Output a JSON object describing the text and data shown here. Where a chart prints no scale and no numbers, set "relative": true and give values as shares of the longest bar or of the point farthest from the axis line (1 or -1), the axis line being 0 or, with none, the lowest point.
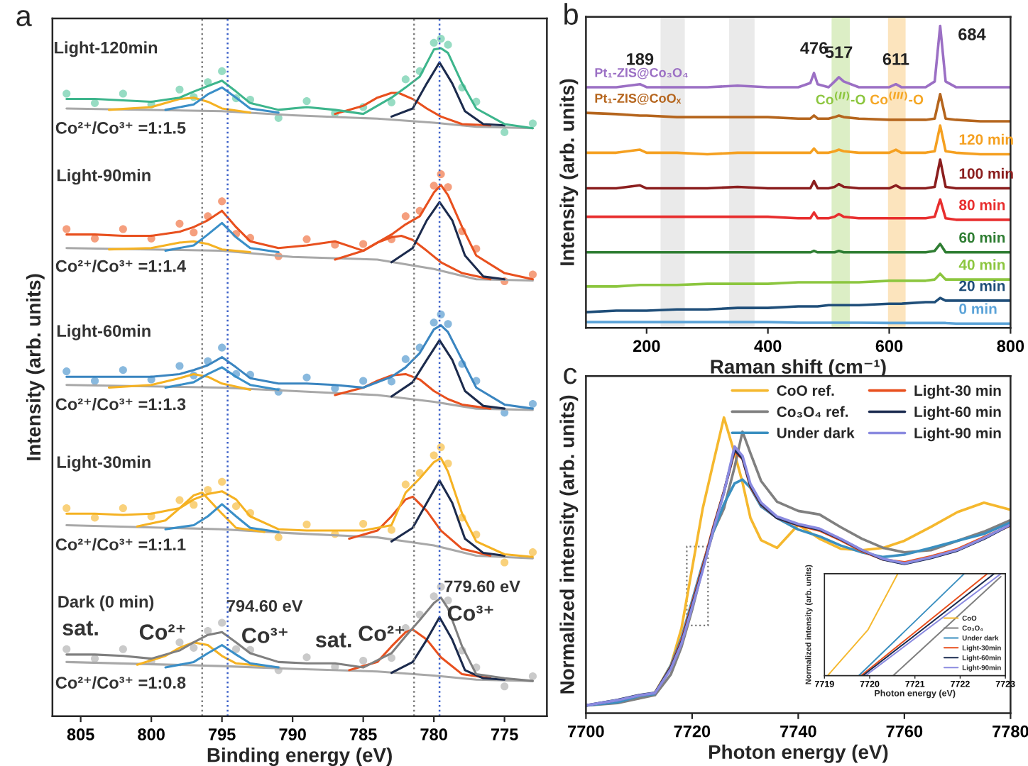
{
  "chart_data": [
    {
      "type": "line",
      "annotations": [
        "a",
        "Light-120min",
        "Co²⁺/Co³⁺ =1:1.5",
        "Light-90min",
        "Co²⁺/Co³⁺ =1:1.4",
        "Light-60min",
        "Co²⁺/Co³⁺ =1:1.3",
        "Light-30min",
        "Co²⁺/Co³⁺ =1:1.1",
        "Dark (0 min)",
        "Co²⁺/Co³⁺ =1:0.8",
        "sat.",
        "Co²⁺",
        "794.60 eV",
        "Co³⁺",
        "sat.",
        "Co²⁺",
        "779.60 eV",
        "Co³⁺"
      ],
      "xlabel": "Binding energy (eV)",
      "ylabel": "Intensity (arb. units)",
      "xlim": [
        807,
        772
      ],
      "xticks": [
        805,
        800,
        795,
        790,
        785,
        780,
        775
      ],
      "relative": true,
      "x": [
        806,
        804,
        802,
        800,
        798,
        797,
        796,
        795,
        794,
        793,
        791,
        789,
        787,
        785,
        783,
        782,
        781,
        780,
        779.5,
        779,
        778,
        777,
        775,
        773
      ],
      "ref_lines": [
        {
          "axis": "x",
          "value": 779.6,
          "color": "#3a5fc8",
          "line_style": "dotted"
        },
        {
          "axis": "x",
          "value": 781.4,
          "color": "#808080",
          "line_style": "dotted"
        },
        {
          "axis": "x",
          "value": 794.6,
          "color": "#3a5fc8",
          "line_style": "dotted"
        },
        {
          "axis": "x",
          "value": 796.4,
          "color": "#808080",
          "line_style": "dotted"
        }
      ],
      "series": [
        {
          "type": "scatter",
          "marker": "circle",
          "color": "#7dd3b4",
          "values": [
            0.919,
            0.905,
            0.919,
            0.903,
            0.925,
            0.914,
            0.936,
            0.952,
            0.912,
            0.91,
            0.883,
            0.908,
            0.89,
            0.899,
            0.906,
            0.94,
            0.952,
            0.994,
            1.0,
            0.991,
            0.928,
            0.907,
            0.862,
            0.875
          ]
        },
        {
          "type": "line",
          "color": "#a8a8a8",
          "x": [
            806,
            795,
            790,
            784,
            780,
            777,
            773
          ],
          "values": [
            0.897,
            0.893,
            0.887,
            0.882,
            0.876,
            0.87,
            0.868
          ]
        },
        {
          "type": "line",
          "color": "#f5b223",
          "x": [
            803,
            800,
            798,
            797,
            796,
            795,
            793
          ],
          "values": [
            0.895,
            0.899,
            0.911,
            0.913,
            0.907,
            0.897,
            0.891
          ]
        },
        {
          "type": "line",
          "color": "#3a8fc8",
          "x": [
            799,
            797,
            796,
            795,
            794,
            793,
            791
          ],
          "values": [
            0.895,
            0.903,
            0.918,
            0.928,
            0.913,
            0.897,
            0.891
          ]
        },
        {
          "type": "line",
          "color": "#e8501e",
          "x": [
            787,
            785,
            784,
            783,
            782.5,
            781.5,
            780.5,
            779.5,
            778,
            776
          ],
          "values": [
            0.889,
            0.901,
            0.913,
            0.92,
            0.92,
            0.911,
            0.897,
            0.885,
            0.874,
            0.872
          ]
        },
        {
          "type": "line",
          "color": "#1c2b4d",
          "x": [
            783,
            781.5,
            780.5,
            779.6,
            778.7,
            777.8,
            776.5,
            775
          ],
          "values": [
            0.885,
            0.897,
            0.934,
            0.965,
            0.934,
            0.893,
            0.874,
            0.872
          ]
        },
        {
          "type": "line",
          "color": "#3db58c",
          "values": [
            0.911,
            0.911,
            0.909,
            0.907,
            0.913,
            0.922,
            0.93,
            0.938,
            0.922,
            0.905,
            0.895,
            0.899,
            0.895,
            0.889,
            0.913,
            0.928,
            0.944,
            0.984,
            0.986,
            0.979,
            0.934,
            0.897,
            0.874,
            0.868
          ]
        },
        {
          "type": "scatter",
          "marker": "circle",
          "color": "#f2875e",
          "values": [
            0.719,
            0.705,
            0.719,
            0.705,
            0.727,
            0.714,
            0.738,
            0.76,
            0.712,
            0.706,
            0.679,
            0.704,
            0.696,
            0.697,
            0.704,
            0.738,
            0.746,
            0.783,
            0.8,
            0.781,
            0.716,
            0.69,
            0.642,
            0.652
          ]
        },
        {
          "type": "line",
          "color": "#a8a8a8",
          "x": [
            806,
            795,
            790,
            784,
            780,
            777,
            773
          ],
          "values": [
            0.691,
            0.687,
            0.678,
            0.674,
            0.66,
            0.645,
            0.643
          ]
        },
        {
          "type": "line",
          "color": "#f5b223",
          "x": [
            803,
            800,
            798,
            797,
            796,
            795,
            793
          ],
          "values": [
            0.689,
            0.691,
            0.699,
            0.701,
            0.697,
            0.689,
            0.685
          ]
        },
        {
          "type": "line",
          "color": "#3a8fc8",
          "x": [
            799,
            797,
            796,
            795,
            794,
            793,
            791
          ],
          "values": [
            0.687,
            0.695,
            0.711,
            0.728,
            0.707,
            0.691,
            0.685
          ]
        },
        {
          "type": "line",
          "color": "#e8501e",
          "x": [
            787,
            785,
            784,
            783,
            782.3,
            781.5,
            780.5,
            779.5,
            778,
            776
          ],
          "values": [
            0.674,
            0.687,
            0.699,
            0.707,
            0.709,
            0.703,
            0.687,
            0.67,
            0.654,
            0.645
          ]
        },
        {
          "type": "line",
          "color": "#1c2b4d",
          "x": [
            783,
            781.5,
            780.5,
            779.6,
            778.7,
            777.8,
            776.5,
            775
          ],
          "values": [
            0.67,
            0.691,
            0.732,
            0.759,
            0.732,
            0.68,
            0.649,
            0.645
          ]
        },
        {
          "type": "line",
          "color": "#e8501e",
          "values": [
            0.711,
            0.711,
            0.709,
            0.709,
            0.715,
            0.722,
            0.732,
            0.746,
            0.722,
            0.701,
            0.691,
            0.695,
            0.701,
            0.687,
            0.711,
            0.726,
            0.738,
            0.773,
            0.784,
            0.769,
            0.722,
            0.68,
            0.654,
            0.645
          ]
        },
        {
          "type": "scatter",
          "marker": "circle",
          "color": "#6ba7d6",
          "values": [
            0.509,
            0.495,
            0.511,
            0.497,
            0.517,
            0.503,
            0.524,
            0.544,
            0.505,
            0.504,
            0.479,
            0.5,
            0.484,
            0.495,
            0.494,
            0.527,
            0.544,
            0.581,
            0.593,
            0.579,
            0.52,
            0.495,
            0.448,
            0.461
          ]
        },
        {
          "type": "line",
          "color": "#a8a8a8",
          "x": [
            806,
            795,
            790,
            784,
            780,
            777,
            773
          ],
          "values": [
            0.489,
            0.485,
            0.48,
            0.474,
            0.464,
            0.454,
            0.452
          ]
        },
        {
          "type": "line",
          "color": "#f5b223",
          "x": [
            803,
            800,
            798,
            797,
            796,
            795,
            793
          ],
          "values": [
            0.485,
            0.489,
            0.499,
            0.505,
            0.501,
            0.491,
            0.482
          ]
        },
        {
          "type": "line",
          "color": "#3a8fc8",
          "x": [
            799,
            797,
            796,
            795,
            794,
            793,
            791
          ],
          "values": [
            0.485,
            0.493,
            0.505,
            0.515,
            0.501,
            0.489,
            0.482
          ]
        },
        {
          "type": "line",
          "color": "#e8501e",
          "x": [
            787,
            785,
            784,
            783,
            782,
            781,
            780,
            779,
            778,
            776
          ],
          "values": [
            0.474,
            0.485,
            0.495,
            0.503,
            0.505,
            0.497,
            0.48,
            0.468,
            0.46,
            0.454
          ]
        },
        {
          "type": "line",
          "color": "#1c2b4d",
          "x": [
            783,
            781.5,
            780.5,
            779.6,
            778.7,
            777.8,
            776.5,
            775
          ],
          "values": [
            0.472,
            0.493,
            0.526,
            0.555,
            0.526,
            0.48,
            0.458,
            0.454
          ]
        },
        {
          "type": "line",
          "color": "#3a85c0",
          "values": [
            0.501,
            0.501,
            0.501,
            0.501,
            0.505,
            0.511,
            0.518,
            0.53,
            0.515,
            0.499,
            0.491,
            0.491,
            0.489,
            0.485,
            0.501,
            0.515,
            0.536,
            0.571,
            0.577,
            0.567,
            0.526,
            0.485,
            0.46,
            0.454
          ]
        },
        {
          "type": "scatter",
          "marker": "circle",
          "color": "#f8c55a",
          "values": [
            0.307,
            0.293,
            0.307,
            0.295,
            0.319,
            0.312,
            0.334,
            0.346,
            0.31,
            0.3,
            0.264,
            0.283,
            0.269,
            0.284,
            0.275,
            0.342,
            0.359,
            0.385,
            0.397,
            0.373,
            0.293,
            0.268,
            0.227,
            0.242
          ]
        },
        {
          "type": "line",
          "color": "#a8a8a8",
          "x": [
            806,
            795,
            790,
            784,
            780,
            777,
            773
          ],
          "values": [
            0.282,
            0.276,
            0.27,
            0.264,
            0.252,
            0.237,
            0.233
          ]
        },
        {
          "type": "line",
          "color": "#f5b223",
          "x": [
            801,
            799,
            798,
            797,
            796.4,
            795,
            794,
            792
          ],
          "values": [
            0.28,
            0.289,
            0.307,
            0.326,
            0.33,
            0.299,
            0.278,
            0.272
          ]
        },
        {
          "type": "line",
          "color": "#3a8fc8",
          "x": [
            799,
            797,
            796,
            795,
            794,
            793,
            791
          ],
          "values": [
            0.276,
            0.282,
            0.295,
            0.313,
            0.295,
            0.278,
            0.272
          ]
        },
        {
          "type": "line",
          "color": "#e8501e",
          "x": [
            786,
            784,
            783,
            782,
            781.5,
            780.5,
            779.5,
            778,
            776
          ],
          "values": [
            0.262,
            0.274,
            0.295,
            0.32,
            0.324,
            0.303,
            0.274,
            0.247,
            0.237
          ]
        },
        {
          "type": "line",
          "color": "#1c2b4d",
          "x": [
            783,
            781.5,
            780.5,
            779.6,
            778.7,
            777.8,
            776.5,
            775
          ],
          "values": [
            0.258,
            0.278,
            0.315,
            0.348,
            0.315,
            0.262,
            0.241,
            0.237
          ]
        },
        {
          "type": "line",
          "color": "#f5b223",
          "values": [
            0.299,
            0.299,
            0.297,
            0.299,
            0.307,
            0.32,
            0.328,
            0.332,
            0.32,
            0.295,
            0.276,
            0.274,
            0.274,
            0.274,
            0.282,
            0.33,
            0.351,
            0.375,
            0.381,
            0.361,
            0.299,
            0.258,
            0.239,
            0.235
          ]
        },
        {
          "type": "scatter",
          "marker": "circle",
          "color": "#bdbdbd",
          "values": [
            0.099,
            0.085,
            0.099,
            0.081,
            0.109,
            0.101,
            0.126,
            0.138,
            0.099,
            0.098,
            0.068,
            0.087,
            0.073,
            0.082,
            0.086,
            0.13,
            0.15,
            0.177,
            0.191,
            0.171,
            0.097,
            0.072,
            0.044,
            0.059
          ]
        },
        {
          "type": "line",
          "color": "#a8a8a8",
          "x": [
            806,
            795,
            790,
            784,
            780,
            777,
            773
          ],
          "values": [
            0.08,
            0.074,
            0.07,
            0.066,
            0.06,
            0.054,
            0.052
          ]
        },
        {
          "type": "line",
          "color": "#f5b223",
          "x": [
            801,
            799,
            798,
            797,
            796,
            795,
            794,
            792
          ],
          "values": [
            0.076,
            0.089,
            0.101,
            0.109,
            0.105,
            0.089,
            0.078,
            0.074
          ]
        },
        {
          "type": "line",
          "color": "#3a8fc8",
          "x": [
            799,
            797,
            796,
            795,
            794,
            793,
            791
          ],
          "values": [
            0.072,
            0.08,
            0.093,
            0.105,
            0.091,
            0.078,
            0.072
          ]
        },
        {
          "type": "line",
          "color": "#e8501e",
          "x": [
            786,
            784,
            783,
            782,
            781.5,
            780.5,
            779.5,
            778,
            776
          ],
          "values": [
            0.068,
            0.08,
            0.103,
            0.124,
            0.128,
            0.113,
            0.087,
            0.062,
            0.056
          ]
        },
        {
          "type": "line",
          "color": "#1c2b4d",
          "x": [
            783,
            781.5,
            780.5,
            779.6,
            778.7,
            777.8,
            776.5,
            775
          ],
          "values": [
            0.064,
            0.08,
            0.113,
            0.146,
            0.113,
            0.068,
            0.056,
            0.054
          ]
        },
        {
          "type": "line",
          "color": "#7f7f7f",
          "values": [
            0.091,
            0.091,
            0.089,
            0.085,
            0.097,
            0.109,
            0.12,
            0.124,
            0.109,
            0.093,
            0.08,
            0.078,
            0.078,
            0.072,
            0.093,
            0.118,
            0.142,
            0.167,
            0.175,
            0.159,
            0.103,
            0.062,
            0.056,
            0.052
          ]
        }
      ]
    },
    {
      "type": "line",
      "annotations": [
        "b",
        {
          "text": "189",
          "x": 189,
          "y": 0.807
        },
        {
          "text": "476",
          "x": 476,
          "y": 0.844
        },
        {
          "text": "517",
          "x": 517,
          "y": 0.83
        },
        {
          "text": "611",
          "x": 611,
          "y": 0.807
        },
        {
          "text": "684",
          "x": 684,
          "y": 1.0
        }
      ],
      "xlabel": "Raman shift (cm⁻¹)",
      "ylabel": "Intensity (arb. units)",
      "xlim": [
        100,
        800
      ],
      "xticks": [
        200,
        400,
        600,
        800
      ],
      "relative": true,
      "bands": [
        {
          "axis": "x",
          "from": 223,
          "to": 263,
          "color": "#b8b8b8"
        },
        {
          "axis": "x",
          "from": 336,
          "to": 378,
          "color": "#b8b8b8"
        },
        {
          "axis": "x",
          "from": 505,
          "to": 535,
          "color": "#8cc63f",
          "label": "Co$^{(II)}$-O"
        },
        {
          "axis": "x",
          "from": 598,
          "to": 627,
          "color": "#f5a623",
          "label": "Co$^{(III)}$-O"
        }
      ],
      "x": [
        100,
        150,
        189,
        200,
        250,
        300,
        350,
        400,
        450,
        470,
        476,
        482,
        500,
        510,
        517,
        525,
        550,
        600,
        611,
        620,
        660,
        675,
        684,
        693,
        710,
        750,
        800
      ],
      "series": [
        {
          "name": "Pt₁-ZIS@Co₃O₄",
          "color": "#9b6fc4",
          "values": [
            0.797,
            0.797,
            0.807,
            0.797,
            0.797,
            0.797,
            0.802,
            0.797,
            0.797,
            0.811,
            0.844,
            0.807,
            0.797,
            0.816,
            0.83,
            0.816,
            0.797,
            0.797,
            0.807,
            0.797,
            0.797,
            0.816,
            1.0,
            0.816,
            0.797,
            0.797,
            0.797
          ]
        },
        {
          "name": "Pt₁-ZIS@CoOₓ",
          "color": "#b5651d",
          "values": [
            0.712,
            0.708,
            0.703,
            0.703,
            0.698,
            0.698,
            0.698,
            0.698,
            0.693,
            0.693,
            0.703,
            0.693,
            0.693,
            0.698,
            0.703,
            0.698,
            0.693,
            0.689,
            0.689,
            0.689,
            0.689,
            0.693,
            0.774,
            0.693,
            0.689,
            0.684,
            0.684
          ]
        },
        {
          "name": "120 min",
          "color": "#f5a020",
          "values": [
            0.58,
            0.58,
            0.59,
            0.58,
            0.58,
            0.575,
            0.58,
            0.58,
            0.58,
            0.58,
            0.594,
            0.58,
            0.58,
            0.585,
            0.59,
            0.585,
            0.58,
            0.58,
            0.59,
            0.58,
            0.58,
            0.585,
            0.67,
            0.585,
            0.58,
            0.575,
            0.575
          ]
        },
        {
          "name": "100 min",
          "color": "#8b1e1e",
          "values": [
            0.462,
            0.462,
            0.472,
            0.462,
            0.462,
            0.462,
            0.467,
            0.462,
            0.462,
            0.462,
            0.486,
            0.462,
            0.462,
            0.467,
            0.476,
            0.467,
            0.462,
            0.462,
            0.472,
            0.462,
            0.462,
            0.467,
            0.557,
            0.467,
            0.462,
            0.462,
            0.462
          ]
        },
        {
          "name": "80 min",
          "color": "#e82e2e",
          "values": [
            0.368,
            0.368,
            0.368,
            0.368,
            0.368,
            0.368,
            0.368,
            0.368,
            0.363,
            0.363,
            0.382,
            0.363,
            0.363,
            0.368,
            0.377,
            0.368,
            0.363,
            0.363,
            0.363,
            0.363,
            0.363,
            0.368,
            0.425,
            0.363,
            0.358,
            0.358,
            0.358
          ]
        },
        {
          "name": "60 min",
          "color": "#2e7d32",
          "values": [
            0.25,
            0.25,
            0.25,
            0.25,
            0.25,
            0.25,
            0.25,
            0.25,
            0.25,
            0.25,
            0.255,
            0.25,
            0.25,
            0.25,
            0.255,
            0.25,
            0.25,
            0.25,
            0.25,
            0.25,
            0.25,
            0.255,
            0.278,
            0.25,
            0.25,
            0.25,
            0.25
          ]
        },
        {
          "name": "40 min",
          "color": "#8cc63f",
          "values": [
            0.137,
            0.137,
            0.142,
            0.142,
            0.142,
            0.146,
            0.146,
            0.146,
            0.151,
            0.151,
            0.151,
            0.151,
            0.151,
            0.151,
            0.151,
            0.151,
            0.151,
            0.156,
            0.156,
            0.156,
            0.156,
            0.16,
            0.179,
            0.16,
            0.16,
            0.16,
            0.16
          ]
        },
        {
          "name": "20 min",
          "color": "#1f4e79",
          "values": [
            0.052,
            0.057,
            0.057,
            0.057,
            0.061,
            0.061,
            0.066,
            0.066,
            0.071,
            0.071,
            0.071,
            0.071,
            0.075,
            0.075,
            0.075,
            0.075,
            0.075,
            0.08,
            0.08,
            0.08,
            0.085,
            0.085,
            0.099,
            0.09,
            0.09,
            0.09,
            0.09
          ]
        },
        {
          "name": "0 min",
          "color": "#5ba3d8",
          "values": [
            0.019,
            0.019,
            0.019,
            0.019,
            0.019,
            0.019,
            0.019,
            0.019,
            0.017,
            0.017,
            0.017,
            0.017,
            0.017,
            0.017,
            0.017,
            0.017,
            0.017,
            0.016,
            0.016,
            0.016,
            0.016,
            0.016,
            0.016,
            0.016,
            0.014,
            0.014,
            0.014
          ]
        }
      ]
    },
    {
      "type": "line",
      "annotations": [
        "c"
      ],
      "xlabel": "Photon energy (eV)",
      "ylabel": "Normalized intensity (arb. units)",
      "xlim": [
        7700,
        7780
      ],
      "xticks": [
        7700,
        7720,
        7740,
        7760,
        7780
      ],
      "relative": true,
      "legend": "top right",
      "x": [
        7700,
        7706,
        7710,
        7713,
        7716,
        7718,
        7720,
        7722,
        7724,
        7726,
        7728,
        7729.5,
        7731,
        7733,
        7736,
        7740,
        7744,
        7748,
        7752,
        7756,
        7760,
        7765,
        7770,
        7775,
        7780
      ],
      "series": [
        {
          "name": "CoO ref.",
          "color": "#f5b82e",
          "values": [
            null,
            null,
            0.05,
            0.069,
            0.162,
            0.287,
            0.489,
            0.692,
            0.847,
            1.0,
            0.879,
            0.78,
            0.66,
            0.585,
            0.559,
            0.637,
            0.59,
            0.556,
            0.551,
            0.559,
            0.583,
            0.63,
            0.68,
            0.712,
            0.688
          ]
        },
        {
          "name": "Co₃O₄ ref.",
          "color": "#808080",
          "values": [
            0.026,
            0.034,
            0.05,
            0.061,
            0.131,
            0.224,
            0.349,
            0.489,
            0.614,
            0.692,
            0.832,
            0.952,
            0.879,
            0.785,
            0.715,
            0.684,
            0.672,
            0.629,
            0.59,
            0.559,
            0.544,
            0.551,
            0.583,
            0.614,
            0.653
          ]
        },
        {
          "name": "Under dark",
          "color": "#3a8fc0",
          "values": [
            0.026,
            0.037,
            0.058,
            0.065,
            0.162,
            0.255,
            0.38,
            0.505,
            0.614,
            0.707,
            0.777,
            0.79,
            0.762,
            0.699,
            0.66,
            0.621,
            0.598,
            0.567,
            0.544,
            0.528,
            0.536,
            0.559,
            0.583,
            0.606,
            0.645
          ]
        },
        {
          "name": "Light-30 min",
          "color": "#e8501e",
          "values": [
            null,
            null,
            null,
            0.067,
            0.157,
            0.247,
            0.371,
            0.497,
            0.63,
            0.75,
            0.885,
            0.86,
            0.765,
            0.705,
            0.66,
            0.635,
            0.618,
            0.585,
            0.548,
            0.52,
            0.51,
            0.53,
            0.555,
            0.595,
            0.635
          ]
        },
        {
          "name": "Light-60 min",
          "color": "#1a2a4f",
          "values": [
            0.026,
            0.045,
            0.061,
            0.069,
            0.154,
            0.24,
            0.364,
            0.489,
            0.625,
            0.748,
            0.891,
            0.862,
            0.769,
            0.707,
            0.66,
            0.637,
            0.621,
            0.588,
            0.551,
            0.52,
            0.505,
            0.525,
            0.55,
            0.59,
            0.637
          ]
        },
        {
          "name": "Light-90 min",
          "color": "#8a8ae0",
          "values": [
            0.026,
            0.044,
            0.06,
            0.068,
            0.15,
            0.235,
            0.358,
            0.483,
            0.62,
            0.745,
            0.902,
            0.87,
            0.775,
            0.712,
            0.665,
            0.64,
            0.624,
            0.59,
            0.552,
            0.522,
            0.507,
            0.527,
            0.552,
            0.592,
            0.638
          ]
        }
      ]
    },
    {
      "type": "line",
      "xlabel": "Photon energy (eV)",
      "ylabel": "Normalized intensity (arb. units)",
      "xlim": [
        7719,
        7723
      ],
      "xticks": [
        7719,
        7720,
        7721,
        7722,
        7723
      ],
      "relative": true,
      "legend": "bottom right",
      "series": [
        {
          "name": "CoO",
          "color": "#f5b82e",
          "x": [
            7719.07,
            7719.96,
            7720.62
          ],
          "values": [
            0,
            0.448,
            1.0
          ]
        },
        {
          "name": "Co₃O₄",
          "color": "#808080",
          "x": [
            7720.52,
            7722.9
          ],
          "values": [
            0,
            0.972
          ]
        },
        {
          "name": "Under dark",
          "color": "#3a8fc0",
          "x": [
            7719.76,
            7722.09
          ],
          "values": [
            0,
            1.0
          ]
        },
        {
          "name": "Light-30min",
          "color": "#e8501e",
          "x": [
            7719.81,
            7722.6
          ],
          "values": [
            0,
            1.0
          ]
        },
        {
          "name": "Light-60min",
          "color": "#1a2a4f",
          "x": [
            7719.85,
            7722.75
          ],
          "values": [
            0,
            1.0
          ]
        },
        {
          "name": "Light-90min",
          "color": "#8a8ae0",
          "x": [
            7719.91,
            7722.9
          ],
          "values": [
            0,
            1.0
          ]
        }
      ]
    }
  ]
}
